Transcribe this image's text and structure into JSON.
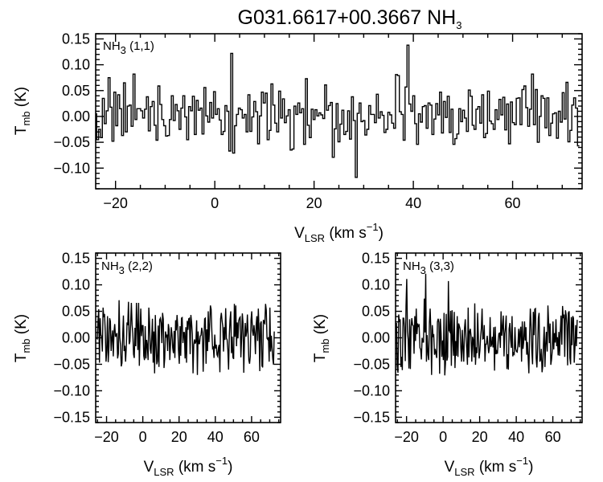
{
  "figure": {
    "title_main": "G031.6617+00.3667 NH",
    "title_sub": "3"
  },
  "chart_data": [
    {
      "type": "line",
      "panel_label": {
        "main": "NH",
        "sub": "3",
        "rest": " (1,1)"
      },
      "xlabel": {
        "main": "V",
        "sub": "LSR",
        "rest": " (km s",
        "sup": "−1",
        "end": ")"
      },
      "ylabel": {
        "main": "T",
        "sub": "mb",
        "rest": " (K)"
      },
      "xlim": [
        -24,
        74
      ],
      "ylim": [
        -0.14,
        0.16
      ],
      "x_ticks": [
        -20,
        0,
        20,
        40,
        60
      ],
      "x_tick_labels": [
        "−20",
        "0",
        "20",
        "40",
        "60"
      ],
      "y_ticks": [
        -0.1,
        -0.05,
        0.0,
        0.05,
        0.1,
        0.15
      ],
      "y_tick_labels": [
        "−0.10",
        "−0.05",
        "0.00",
        "0.05",
        "0.10",
        "0.15"
      ],
      "step": true,
      "x_start": -24,
      "x_step": 0.386,
      "values": [
        0.005,
        -0.045,
        -0.025,
        -0.041,
        0.035,
        -0.014,
        0.011,
        0.075,
        0.018,
        -0.048,
        0.047,
        -0.018,
        0.042,
        0.015,
        -0.037,
        0.065,
        -0.03,
        0.02,
        0.022,
        -0.019,
        0.082,
        -0.006,
        0.015,
        0.015,
        0.011,
        -0.003,
        0.014,
        0.038,
        -0.028,
        0.019,
        0.029,
        -0.017,
        -0.046,
        0.059,
        0.023,
        -0.006,
        -0.018,
        -0.038,
        -0.037,
        -0.006,
        0.04,
        -0.008,
        0.023,
        0.011,
        -0.025,
        0.016,
        0.04,
        -0.001,
        -0.045,
        0.019,
        0.011,
        0.039,
        -0.035,
        0.031,
        0.012,
        0.016,
        -0.034,
        0.056,
        0.001,
        -0.011,
        0.027,
        -0.003,
        0.048,
        0.004,
        0.015,
        -0.007,
        -0.035,
        -0.029,
        0.021,
        0.01,
        -0.067,
        0.122,
        -0.071,
        -0.018,
        0.004,
        0.016,
        0.013,
        -0.003,
        0.004,
        -0.03,
        0.042,
        -0.029,
        -0.001,
        0.029,
        0.009,
        -0.053,
        0.001,
        0.047,
        0.026,
        0.045,
        -0.045,
        -0.027,
        0.063,
        0.022,
        -0.013,
        -0.03,
        0.049,
        -0.003,
        0.034,
        -0.012,
        0.001,
        0.013,
        -0.065,
        -0.063,
        0.02,
        0.004,
        0.026,
        0.007,
        0.015,
        -0.054,
        0.073,
        -0.017,
        -0.041,
        0.014,
        -0.006,
        0.013,
        0.001,
        0.007,
        0.003,
        -0.004,
        0.061,
        0.012,
        0.021,
        0.027,
        -0.079,
        -0.024,
        0.025,
        -0.049,
        -0.015,
        0.012,
        -0.035,
        -0.029,
        0.011,
        -0.044,
        0.038,
        -0.008,
        -0.118,
        0.006,
        0.026,
        -0.01,
        -0.008,
        -0.036,
        -0.025,
        0.021,
        0.004,
        0.004,
        -0.012,
        0.043,
        -0.003,
        0.009,
        0.002,
        -0.031,
        -0.025,
        0.008,
        0.003,
        -0.013,
        -0.023,
        0.081,
        0.079,
        0.009,
        0.004,
        -0.046,
        0.057,
        0.138,
        0.024,
        0.01,
        0.04,
        -0.014,
        -0.054,
        0.005,
        -0.011,
        0.019,
        0.021,
        -0.023,
        0.026,
        0.022,
        -0.035,
        -0.005,
        0.025,
        0.003,
        0.047,
        -0.032,
        0.029,
        -0.002,
        0.039,
        -0.031,
        0.014,
        -0.054,
        -0.043,
        -0.034,
        0.015,
        -0.01,
        0.012,
        -0.003,
        -0.029,
        0.051,
        0.039,
        -0.017,
        -0.025,
        0.014,
        0.019,
        -0.013,
        0.042,
        -0.041,
        -0.033,
        0.049,
        -0.009,
        -0.014,
        -0.025,
        0.013,
        -0.006,
        0.033,
        0.003,
        0.037,
        -0.026,
        0.024,
        -0.053,
        0.028,
        -0.012,
        -0.016,
        0.035,
        0.036,
        -0.016,
        0.052,
        0.059,
        0.017,
        -0.019,
        0.014,
        0.082,
        -0.016,
        0.052,
        -0.05,
        0.0,
        0.04,
        0.035,
        -0.022,
        0.036,
        -0.037,
        -0.013,
        0.005,
        0.007,
        -0.042,
        0.01,
        -0.011,
        0.046,
        -0.005,
        0.066,
        -0.049,
        -0.027,
        0.022,
        0.036,
        0.016,
        -0.057
      ]
    },
    {
      "type": "line",
      "panel_label": {
        "main": "NH",
        "sub": "3",
        "rest": " (2,2)"
      },
      "xlabel": {
        "main": "V",
        "sub": "LSR",
        "rest": " (km s",
        "sup": "−1",
        "end": ")"
      },
      "ylabel": {
        "main": "T",
        "sub": "mb",
        "rest": " (K)"
      },
      "xlim": [
        -26,
        76
      ],
      "ylim": [
        -0.16,
        0.16
      ],
      "x_ticks": [
        -20,
        0,
        20,
        40,
        60
      ],
      "x_tick_labels": [
        "−20",
        "0",
        "20",
        "40",
        "60"
      ],
      "y_ticks": [
        -0.15,
        -0.1,
        -0.05,
        0.0,
        0.05,
        0.1,
        0.15
      ],
      "y_tick_labels": [
        "−0.15",
        "−0.10",
        "−0.05",
        "0.00",
        "0.05",
        "0.10",
        "0.15"
      ],
      "step": false,
      "x_start": -25.5,
      "x_step": 0.4,
      "values": [
        -0.001,
        -0.002,
        0.033,
        0.054,
        -0.047,
        0.037,
        0.006,
        0.002,
        -0.026,
        0.057,
        0.039,
        0.045,
        0.009,
        -0.045,
        -0.024,
        0.041,
        -0.046,
        -0.016,
        0.037,
        0.031,
        -0.025,
        -0.001,
        0.014,
        -0.035,
        0.011,
        0.026,
        0.002,
        0.005,
        0.009,
        -0.039,
        -0.03,
        0.071,
        0.0,
        -0.014,
        -0.054,
        -0.048,
        0.003,
        0.042,
        -0.025,
        -0.015,
        -0.045,
        -0.017,
        0.029,
        0.024,
        0.068,
        -0.012,
        -0.007,
        0.028,
        0.066,
        0.024,
        0.008,
        -0.031,
        -0.038,
        0.019,
        -0.016,
        0.066,
        0.024,
        -0.023,
        0.066,
        -0.053,
        0.006,
        0.055,
        0.003,
        0.023,
        0.023,
        -0.034,
        -0.042,
        0.022,
        -0.039,
        -0.004,
        -0.015,
        -0.042,
        0.057,
        0.029,
        -0.021,
        -0.03,
        0.001,
        0.036,
        -0.047,
        0.012,
        -0.067,
        0.043,
        -0.011,
        -0.05,
        -0.044,
        0.023,
        -0.055,
        0.034,
        0.037,
        0.028,
        -0.01,
        0.047,
        0.035,
        -0.057,
        -0.039,
        0.012,
        0.003,
        0.006,
        -0.025,
        0.026,
        0.016,
        -0.042,
        -0.012,
        0.02,
        0.007,
        -0.019,
        -0.029,
        0.013,
        -0.038,
        0.033,
        0.014,
        0.043,
        0.021,
        -0.023,
        -0.049,
        0.022,
        -0.034,
        0.037,
        0.038,
        -0.01,
        0.01,
        0.01,
        -0.039,
        0.02,
        -0.047,
        0.032,
        0.015,
        0.036,
        0.037,
        -0.031,
        0.043,
        0.029,
        0.007,
        -0.067,
        -0.013,
        -0.003,
        -0.011,
        -0.007,
        0.033,
        -0.07,
        0.012,
        -0.011,
        -0.011,
        0.003,
        0.005,
        0.019,
        0.01,
        -0.064,
        -0.006,
        0.036,
        0.037,
        -0.049,
        0.016,
        -0.025,
        0.05,
        -0.008,
        0.025,
        0.061,
        0.054,
        0.012,
        -0.02,
        -0.018,
        -0.038,
        0.006,
        -0.02,
        -0.013,
        -0.032,
        -0.035,
        -0.019,
        -0.013,
        -0.065,
        0.036,
        0.047,
        0.032,
        0.022,
        -0.026,
        0.02,
        -0.004,
        0.056,
        -0.001,
        -0.004,
        -0.023,
        -0.06,
        0.004,
        0.034,
        0.05,
        -0.029,
        0.002,
        -0.037,
        -0.04,
        0.064,
        0.002,
        0.061,
        -0.016,
        0.029,
        -0.001,
        0.032,
        0.037,
        0.039,
        -0.037,
        -0.002,
        0.046,
        0.027,
        -0.066,
        -0.004,
        0.028,
        0.002,
        0.011,
        0.044,
        0.004,
        -0.042,
        -0.049,
        -0.035,
        0.033,
        0.05,
        0.014,
        0.004,
        0.024,
        0.008,
        -0.031,
        0.024,
        0.041,
        -0.006,
        0.055,
        0.015,
        -0.063,
        0.027,
        0.031,
        -0.053,
        -0.056,
        0.034,
        0.029,
        0.027,
        0.064,
        0.052,
        -0.001,
        -0.003,
        0.001,
        -0.045,
        0.057,
        -0.026,
        0.004,
        -0.019,
        -0.04,
        -0.051,
        0.012
      ]
    },
    {
      "type": "line",
      "panel_label": {
        "main": "NH",
        "sub": "3",
        "rest": " (3,3)"
      },
      "xlabel": {
        "main": "V",
        "sub": "LSR",
        "rest": " (km s",
        "sup": "−1",
        "end": ")"
      },
      "ylabel": {
        "main": "T",
        "sub": "mb",
        "rest": " (K)"
      },
      "xlim": [
        -26,
        76
      ],
      "ylim": [
        -0.16,
        0.16
      ],
      "x_ticks": [
        -20,
        0,
        20,
        40,
        60
      ],
      "x_tick_labels": [
        "−20",
        "0",
        "20",
        "40",
        "60"
      ],
      "y_ticks": [
        -0.15,
        -0.1,
        -0.05,
        0.0,
        0.05,
        0.1,
        0.15
      ],
      "y_tick_labels": [
        "−0.15",
        "−0.10",
        "−0.05",
        "0.00",
        "0.05",
        "0.10",
        "0.15"
      ],
      "step": false,
      "x_start": -25.5,
      "x_step": 0.4,
      "values": [
        0.028,
        -0.054,
        -0.066,
        0.044,
        0.03,
        0.035,
        -0.055,
        -0.036,
        -0.061,
        0.037,
        0.037,
        0.02,
        -0.044,
        0.06,
        0.111,
        0.012,
        -0.004,
        -0.058,
        0.035,
        -0.059,
        0.02,
        0.037,
        0.024,
        0.023,
        -0.03,
        0.041,
        -0.006,
        0.055,
        0.007,
        0.027,
        0.022,
        0.024,
        -0.019,
        -0.022,
        -0.041,
        0.0,
        -0.008,
        -0.008,
        0.074,
        0.01,
        0.121,
        -0.045,
        0.005,
        -0.032,
        -0.042,
        0.028,
        0.055,
        0.015,
        -0.07,
        0.024,
        0.003,
        0.005,
        -0.032,
        -0.021,
        -0.031,
        -0.038,
        0.03,
        0.036,
        0.029,
        -0.068,
        0.036,
        0.009,
        -0.036,
        -0.005,
        -0.042,
        0.047,
        -0.071,
        -0.048,
        0.045,
        -0.043,
        -0.036,
        0.107,
        0.014,
        0.011,
        0.051,
        -0.053,
        0.052,
        -0.002,
        -0.034,
        0.049,
        -0.057,
        -0.006,
        -0.034,
        0.041,
        -0.036,
        0.027,
        0.022,
        0.016,
        -0.02,
        -0.045,
        0.015,
        -0.021,
        -0.045,
        0.017,
        0.035,
        0.002,
        -0.02,
        -0.051,
        0.057,
        -0.037,
        0.012,
        0.017,
        0.003,
        -0.045,
        0.002,
        -0.005,
        -0.037,
        0.065,
        -0.051,
        -0.018,
        -0.029,
        0.047,
        0.0,
        -0.039,
        -0.024,
        0.002,
        0.018,
        0.055,
        -0.002,
        -0.001,
        0.024,
        -0.045,
        -0.012,
        -0.012,
        0.004,
        -0.013,
        -0.029,
        -0.019,
        0.039,
        -0.017,
        -0.013,
        0.002,
        -0.018,
        0.02,
        -0.062,
        0.021,
        -0.031,
        -0.026,
        -0.03,
        -0.006,
        0.008,
        0.009,
        -0.019,
        0.05,
        0.004,
        0.022,
        0.042,
        -0.035,
        0.008,
        0.02,
        0.042,
        -0.059,
        -0.031,
        -0.06,
        0.017,
        0.028,
        -0.004,
        -0.019,
        0.041,
        -0.035,
        -0.029,
        -0.031,
        0.02,
        -0.021,
        -0.026,
        -0.027,
        -0.013,
        0.017,
        -0.018,
        0.012,
        0.021,
        -0.045,
        0.031,
        -0.021,
        -0.007,
        0.031,
        -0.005,
        0.02,
        -0.032,
        -0.008,
        -0.037,
        -0.067,
        0.007,
        0.055,
        0.025,
        -0.026,
        -0.05,
        0.049,
        0.005,
        0.054,
        0.055,
        -0.039,
        -0.056,
        -0.02,
        0.037,
        0.047,
        -0.045,
        -0.041,
        -0.021,
        -0.065,
        -0.053,
        -0.01,
        0.021,
        -0.055,
        -0.012,
        0.011,
        -0.026,
        0.061,
        0.028,
        -0.01,
        0.027,
        -0.051,
        -0.041,
        -0.024,
        0.031,
        -0.022,
        0.009,
        -0.009,
        0.035,
        -0.016,
        0.001,
        -0.033,
        0.011,
        -0.034,
        0.012,
        0.042,
        -0.013,
        0.06,
        0.037,
        0.044,
        -0.036,
        0.052,
        0.043,
        0.024,
        -0.052,
        0.047,
        0.05,
        -0.038,
        -0.05,
        0.039,
        -0.014,
        0.041,
        0.037,
        -0.047,
        -0.019,
        0.024,
        -0.016,
        0.034
      ]
    }
  ]
}
